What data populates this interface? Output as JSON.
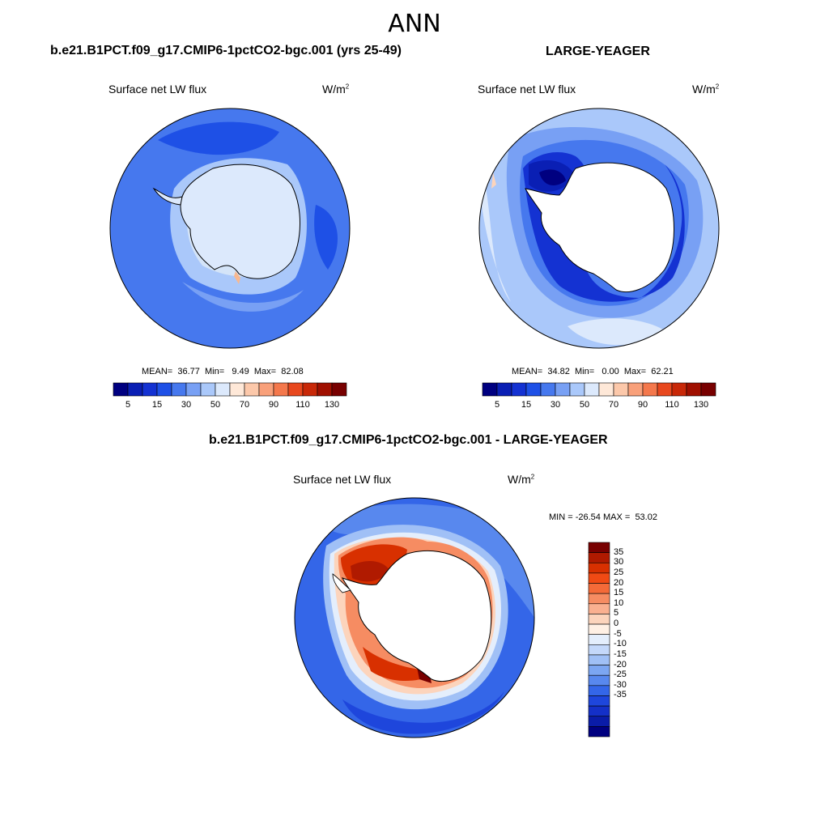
{
  "title": "ANN",
  "variable": "Surface net LW flux",
  "units_base": "W/m",
  "units_exp": "2",
  "panels": [
    {
      "title": "b.e21.B1PCT.f09_g17.CMIP6-1pctCO2-bgc.001 (yrs 25-49)",
      "mean_label": "MEAN=",
      "mean": "36.77",
      "min_label": "Min=",
      "min": "9.49",
      "max_label": "Max=",
      "max": "82.08",
      "land_fill": "#d4e4f8"
    },
    {
      "title": "LARGE-YEAGER",
      "mean_label": "MEAN=",
      "mean": "34.82",
      "min_label": "Min=",
      "min": "0.00",
      "max_label": "Max=",
      "max": "62.21",
      "land_fill": "#ffffff"
    },
    {
      "title": "b.e21.B1PCT.f09_g17.CMIP6-1pctCO2-bgc.001 - LARGE-YEAGER",
      "min_label": "MIN =",
      "min": "-26.54",
      "max_label": "MAX =",
      "max": "53.02",
      "land_fill": "#ffffff"
    }
  ],
  "colorbar_abs": {
    "colors": [
      "#000080",
      "#0a1fb4",
      "#1432d2",
      "#1e50e6",
      "#4678ee",
      "#78a0f4",
      "#aac8fa",
      "#dce9fc",
      "#fee8d8",
      "#fcc8aa",
      "#f8a07a",
      "#f4784c",
      "#e8481e",
      "#c82808",
      "#a01000",
      "#780000"
    ],
    "tick_labels": [
      "5",
      "15",
      "30",
      "50",
      "70",
      "90",
      "110",
      "130"
    ]
  },
  "colorbar_diff": {
    "colors": [
      "#780000",
      "#b01a00",
      "#d83000",
      "#f04a14",
      "#f46a38",
      "#f68c62",
      "#fab090",
      "#fcd4bc",
      "#fff0e4",
      "#e4eefc",
      "#c4d8fa",
      "#a0c0f6",
      "#7ca6f2",
      "#5888ee",
      "#3466e8",
      "#1e46dc",
      "#1430c8",
      "#0a1ca8",
      "#000080"
    ],
    "tick_labels": [
      "35",
      "30",
      "25",
      "20",
      "15",
      "10",
      "5",
      "0",
      "-5",
      "-10",
      "-15",
      "-20",
      "-25",
      "-30",
      "-35"
    ]
  }
}
